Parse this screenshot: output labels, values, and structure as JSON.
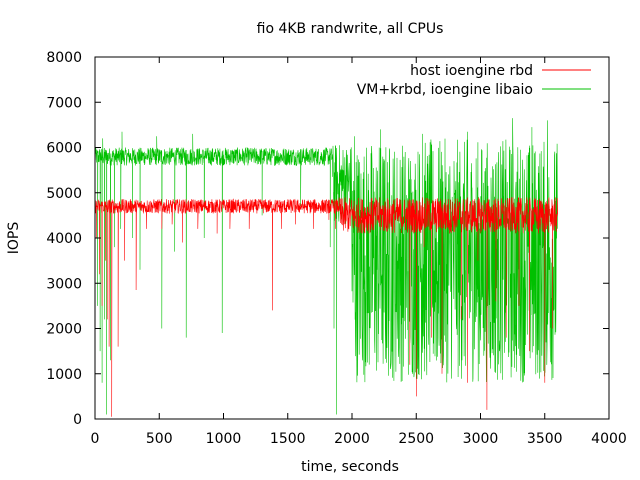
{
  "chart_data": {
    "type": "line",
    "title": "fio 4KB randwrite, all CPUs",
    "xlabel": "time, seconds",
    "ylabel": "IOPS",
    "xlim": [
      0,
      4000
    ],
    "ylim": [
      0,
      8000
    ],
    "xticks": [
      0,
      500,
      1000,
      1500,
      2000,
      2500,
      3000,
      3500,
      4000
    ],
    "yticks": [
      0,
      1000,
      2000,
      3000,
      4000,
      5000,
      6000,
      7000,
      8000
    ],
    "grid": false,
    "legend_position": "top-right",
    "series": [
      {
        "name": "host ioengine rbd",
        "color": "#ff0000",
        "x_range": [
          0,
          3600
        ],
        "segments": [
          {
            "x": [
              0,
              1900
            ],
            "baseline": 4700,
            "jitter": 160
          },
          {
            "x": [
              1900,
              3600
            ],
            "baseline": 4500,
            "jitter": 400
          }
        ],
        "dips": [
          {
            "x": 10,
            "y": 4000
          },
          {
            "x": 35,
            "y": 3200
          },
          {
            "x": 55,
            "y": 2500
          },
          {
            "x": 80,
            "y": 3500
          },
          {
            "x": 95,
            "y": 2200
          },
          {
            "x": 110,
            "y": 1600
          },
          {
            "x": 130,
            "y": 50
          },
          {
            "x": 180,
            "y": 1600
          },
          {
            "x": 230,
            "y": 3500
          },
          {
            "x": 320,
            "y": 2850
          },
          {
            "x": 400,
            "y": 4200
          },
          {
            "x": 520,
            "y": 4200
          },
          {
            "x": 600,
            "y": 4300
          },
          {
            "x": 680,
            "y": 3900
          },
          {
            "x": 800,
            "y": 4200
          },
          {
            "x": 950,
            "y": 4100
          },
          {
            "x": 1050,
            "y": 4200
          },
          {
            "x": 1200,
            "y": 4200
          },
          {
            "x": 1380,
            "y": 2400
          },
          {
            "x": 1450,
            "y": 4200
          },
          {
            "x": 1560,
            "y": 4300
          },
          {
            "x": 1700,
            "y": 4200
          },
          {
            "x": 1820,
            "y": 4400
          },
          {
            "x": 1870,
            "y": 4200
          },
          {
            "x": 2430,
            "y": 4300
          },
          {
            "x": 2450,
            "y": 1200
          },
          {
            "x": 2500,
            "y": 500
          },
          {
            "x": 2560,
            "y": 3800
          },
          {
            "x": 2620,
            "y": 1800
          },
          {
            "x": 2700,
            "y": 1000
          },
          {
            "x": 2760,
            "y": 4100
          },
          {
            "x": 2850,
            "y": 2200
          },
          {
            "x": 2900,
            "y": 800
          },
          {
            "x": 2980,
            "y": 3500
          },
          {
            "x": 3050,
            "y": 200
          },
          {
            "x": 3120,
            "y": 2600
          },
          {
            "x": 3200,
            "y": 1800
          },
          {
            "x": 3250,
            "y": 4200
          },
          {
            "x": 3300,
            "y": 2500
          },
          {
            "x": 3380,
            "y": 1500
          },
          {
            "x": 3450,
            "y": 4100
          },
          {
            "x": 3500,
            "y": 800
          },
          {
            "x": 3560,
            "y": 2000
          }
        ]
      },
      {
        "name": "VM+krbd, ioengine libaio",
        "color": "#00c000",
        "x_range": [
          0,
          3600
        ],
        "segments": [
          {
            "x": [
              0,
              1850
            ],
            "baseline": 5800,
            "jitter": 200
          },
          {
            "x": [
              1850,
              2000
            ],
            "baseline": 5200,
            "jitter": 900
          },
          {
            "x": [
              2000,
              3600
            ],
            "baseline": 3500,
            "jitter": 2700
          }
        ],
        "dips": [
          {
            "x": 20,
            "y": 2500
          },
          {
            "x": 40,
            "y": 1500
          },
          {
            "x": 55,
            "y": 800
          },
          {
            "x": 75,
            "y": 2200
          },
          {
            "x": 90,
            "y": 100
          },
          {
            "x": 120,
            "y": 1300
          },
          {
            "x": 150,
            "y": 3800
          },
          {
            "x": 200,
            "y": 4200
          },
          {
            "x": 290,
            "y": 4000
          },
          {
            "x": 350,
            "y": 3300
          },
          {
            "x": 520,
            "y": 2000
          },
          {
            "x": 620,
            "y": 3700
          },
          {
            "x": 710,
            "y": 1800
          },
          {
            "x": 850,
            "y": 4000
          },
          {
            "x": 990,
            "y": 1900
          },
          {
            "x": 1300,
            "y": 4500
          },
          {
            "x": 1600,
            "y": 4700
          },
          {
            "x": 1830,
            "y": 3800
          },
          {
            "x": 1860,
            "y": 2000
          },
          {
            "x": 1880,
            "y": 100
          }
        ],
        "peaks": [
          {
            "x": 60,
            "y": 6200
          },
          {
            "x": 210,
            "y": 6350
          },
          {
            "x": 480,
            "y": 6250
          },
          {
            "x": 760,
            "y": 6300
          },
          {
            "x": 2020,
            "y": 6250
          },
          {
            "x": 2220,
            "y": 6400
          },
          {
            "x": 2550,
            "y": 6300
          },
          {
            "x": 2900,
            "y": 6350
          },
          {
            "x": 3250,
            "y": 6650
          },
          {
            "x": 3400,
            "y": 6450
          },
          {
            "x": 3520,
            "y": 6600
          }
        ]
      }
    ]
  }
}
